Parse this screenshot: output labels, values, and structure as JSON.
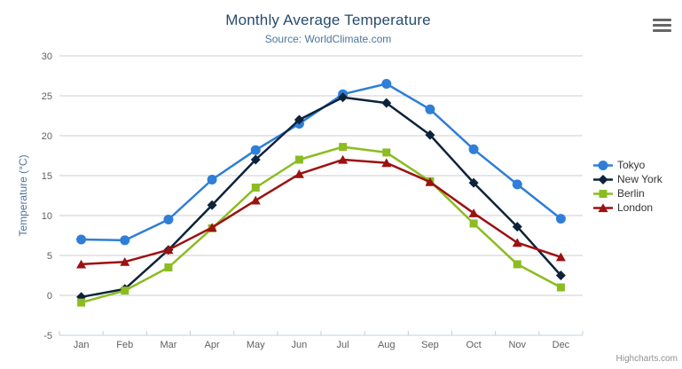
{
  "header": {
    "title": "Monthly Average Temperature",
    "subtitle": "Source: WorldClimate.com"
  },
  "credits_label": "Highcharts.com",
  "icons": {
    "export_menu": "hamburger-icon"
  },
  "colors": {
    "title": "#274b6d",
    "subtitle": "#4d759e",
    "axis_title": "#4d759e",
    "axis_label": "#606060",
    "grid": "#cccccc",
    "axis_line": "#c0d0e0",
    "legend_text": "#333333",
    "credits": "#909090",
    "menu_icon": "#666666"
  },
  "chart_data": {
    "type": "line",
    "title": "Monthly Average Temperature",
    "subtitle": "Source: WorldClimate.com",
    "xlabel": "",
    "ylabel": "Temperature (°C)",
    "ylim": [
      -5,
      30
    ],
    "ytick_step": 5,
    "grid": true,
    "legend_position": "right",
    "categories": [
      "Jan",
      "Feb",
      "Mar",
      "Apr",
      "May",
      "Jun",
      "Jul",
      "Aug",
      "Sep",
      "Oct",
      "Nov",
      "Dec"
    ],
    "series": [
      {
        "name": "Tokyo",
        "color": "#2f7ed8",
        "marker": "circle",
        "values": [
          7.0,
          6.9,
          9.5,
          14.5,
          18.2,
          21.5,
          25.2,
          26.5,
          23.3,
          18.3,
          13.9,
          9.6
        ]
      },
      {
        "name": "New York",
        "color": "#0d233a",
        "marker": "diamond",
        "values": [
          -0.2,
          0.8,
          5.7,
          11.3,
          17.0,
          22.0,
          24.8,
          24.1,
          20.1,
          14.1,
          8.6,
          2.5
        ]
      },
      {
        "name": "Berlin",
        "color": "#8bbc21",
        "marker": "square",
        "values": [
          -0.9,
          0.6,
          3.5,
          8.4,
          13.5,
          17.0,
          18.6,
          17.9,
          14.3,
          9.0,
          3.9,
          1.0
        ]
      },
      {
        "name": "London",
        "color": "#9c1111",
        "marker": "triangle",
        "values": [
          3.9,
          4.2,
          5.7,
          8.5,
          11.9,
          15.2,
          17.0,
          16.6,
          14.2,
          10.3,
          6.6,
          4.8
        ]
      }
    ]
  }
}
